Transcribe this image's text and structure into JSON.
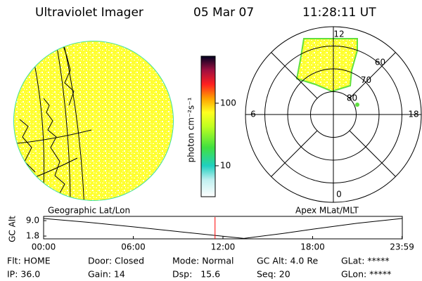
{
  "header": {
    "instrument": "Ultraviolet Imager",
    "date": "05 Mar 07",
    "time": "11:28:11 UT"
  },
  "geographic_panel": {
    "label": "Geographic Lat/Lon"
  },
  "colorbar": {
    "label": "photon cm⁻²s⁻¹",
    "scale": "log",
    "lim": [
      3.2,
      565
    ],
    "ticks": [
      10,
      100
    ]
  },
  "polar_panel": {
    "label": "Apex MLat/MLT",
    "mlt_labels": [
      12,
      18,
      6,
      0
    ],
    "mlat_labels": [
      60,
      70,
      80
    ]
  },
  "chart_data": {
    "type": "line",
    "ylabel": "GC Alt",
    "x": [
      0,
      3,
      6,
      9,
      13.4,
      16,
      18,
      21,
      23.98
    ],
    "series": [
      {
        "name": "GC Alt",
        "color": "#000000",
        "values": [
          10.0,
          8.2,
          6.1,
          3.9,
          0.7,
          3.0,
          5.0,
          7.8,
          10.0
        ]
      }
    ],
    "xlim": [
      0,
      24
    ],
    "ylim": [
      0.5,
      11.0
    ],
    "xticks": [
      {
        "value": 0,
        "label": "00:00"
      },
      {
        "value": 6,
        "label": "06:00"
      },
      {
        "value": 12,
        "label": "12:00"
      },
      {
        "value": 18,
        "label": "18:00"
      },
      {
        "value": 23.98,
        "label": "23:59"
      }
    ],
    "yticks": [
      {
        "value": 9.0,
        "label": "9.0"
      },
      1.8
    ],
    "marker_x": 11.47,
    "marker_color": "#ff0000"
  },
  "status": {
    "rows": [
      [
        "Flt: HOME",
        "Door: Closed",
        "Mode: Normal",
        "GC Alt: 4.0 Re",
        "GLat: *****"
      ],
      [
        "IP: 36.0",
        "Gain: 14",
        "Dsp:   15.6",
        "Seq: 20",
        "GLon: *****"
      ]
    ]
  }
}
